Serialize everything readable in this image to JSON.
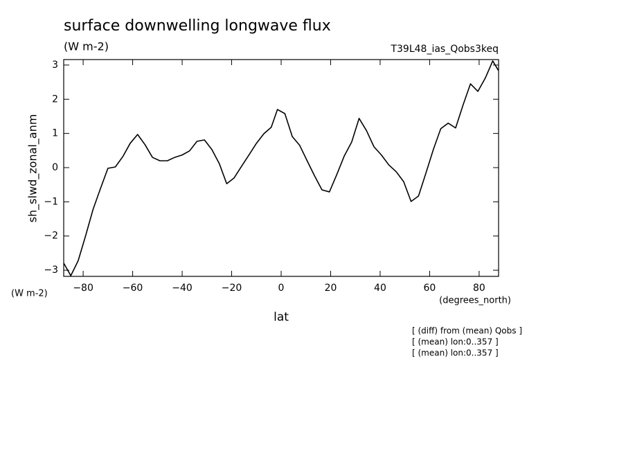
{
  "chart_data": {
    "type": "line",
    "title": "surface downwelling longwave flux",
    "subtitle": "(W m-2)",
    "annotation": "T39L48_ias_Qobs3keq",
    "ylabel": "sh_slwd_zonal_anm",
    "yunits": "(W m-2)",
    "xlabel": "lat",
    "xunits": "(degrees_north)",
    "notes": [
      "[ (diff) from (mean) Qobs ]",
      "[ (mean) lon:0..357 ]",
      "[ (mean) lon:0..357 ]"
    ],
    "color": "#000000",
    "x": [
      -87.8,
      -85,
      -82,
      -79,
      -76,
      -73,
      -70,
      -67,
      -64,
      -61,
      -58,
      -55,
      -52,
      -49,
      -46,
      -43,
      -40,
      -37,
      -34,
      -31,
      -28,
      -25,
      -22,
      -19,
      -16,
      -13,
      -10,
      -7,
      -4,
      -1.5,
      1.5,
      4.5,
      7.5,
      10.5,
      13.5,
      16.5,
      19.5,
      22.5,
      25.5,
      28.5,
      31.5,
      34.5,
      37.5,
      40.5,
      43.5,
      46.5,
      49.5,
      52.5,
      55.5,
      58.5,
      61.5,
      64.5,
      67.5,
      70.5,
      73.5,
      76.5,
      79.5,
      82.5,
      85.5,
      87.8
    ],
    "values": [
      -2.8,
      -3.16,
      -2.72,
      -1.99,
      -1.22,
      -0.61,
      -0.02,
      0.02,
      0.32,
      0.71,
      0.97,
      0.67,
      0.3,
      0.2,
      0.2,
      0.3,
      0.37,
      0.49,
      0.77,
      0.81,
      0.53,
      0.12,
      -0.47,
      -0.3,
      0.04,
      0.37,
      0.71,
      0.99,
      1.18,
      1.7,
      1.58,
      0.91,
      0.65,
      0.2,
      -0.24,
      -0.65,
      -0.71,
      -0.2,
      0.34,
      0.75,
      1.44,
      1.08,
      0.61,
      0.37,
      0.08,
      -0.12,
      -0.41,
      -0.99,
      -0.83,
      -0.16,
      0.53,
      1.14,
      1.3,
      1.16,
      1.83,
      2.45,
      2.23,
      2.62,
      3.12,
      2.84
    ],
    "xlim": [
      -87.86,
      87.86
    ],
    "ylim": [
      -3.18,
      3.16
    ],
    "xticks": [
      -80,
      -60,
      -40,
      -20,
      0,
      20,
      40,
      60,
      80
    ],
    "yticks": [
      -3,
      -2,
      -1,
      0,
      1,
      2,
      3
    ]
  }
}
